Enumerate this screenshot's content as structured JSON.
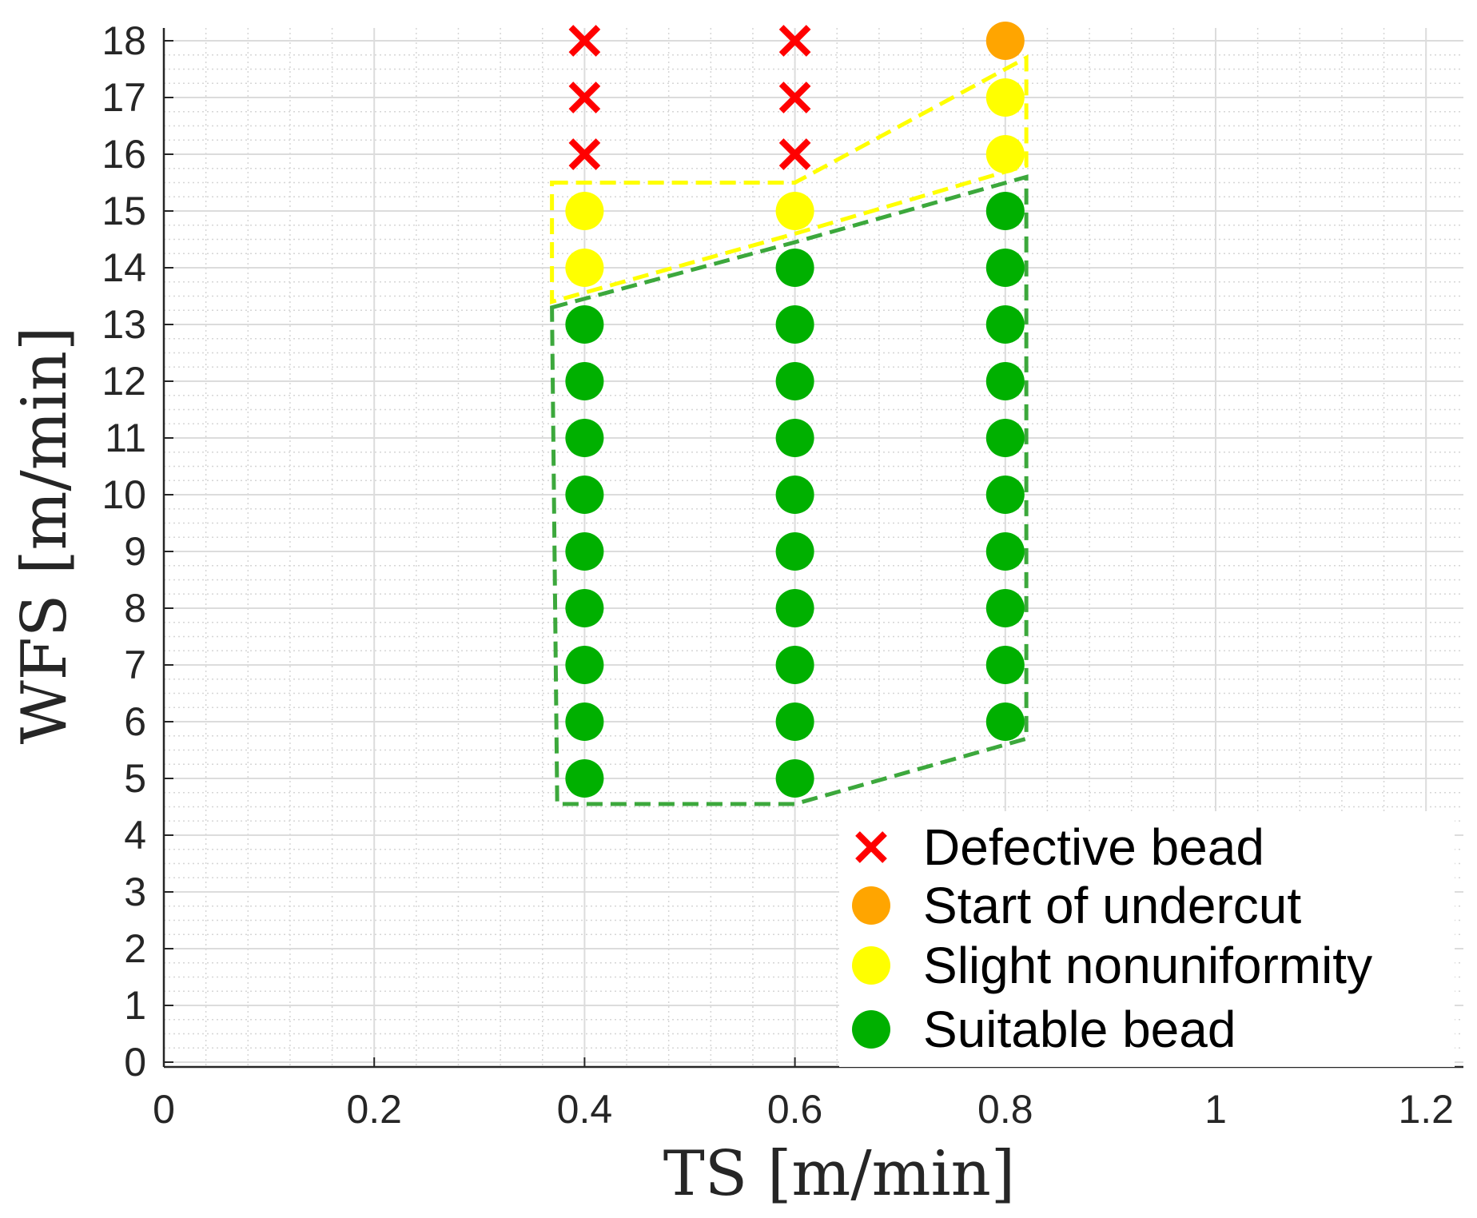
{
  "chart_data": {
    "type": "scatter",
    "title": "",
    "xlabel": "TS [m/min]",
    "ylabel": "WFS [m/min]",
    "xlim": [
      0,
      1.24
    ],
    "ylim": [
      0,
      18.5
    ],
    "xticks": [
      0,
      0.2,
      0.4,
      0.6,
      0.8,
      1,
      1.2
    ],
    "xtick_labels": [
      "0",
      "0.2",
      "0.4",
      "0.6",
      "0.8",
      "1",
      "1.2"
    ],
    "yticks": [
      0,
      1,
      2,
      3,
      4,
      5,
      6,
      7,
      8,
      9,
      10,
      11,
      12,
      13,
      14,
      15,
      16,
      17,
      18
    ],
    "ytick_labels": [
      "0",
      "1",
      "2",
      "3",
      "4",
      "5",
      "6",
      "7",
      "8",
      "9",
      "10",
      "11",
      "12",
      "13",
      "14",
      "15",
      "16",
      "17",
      "18"
    ],
    "grid": true,
    "minor_grid": true,
    "legend_position": "bottom-right",
    "series": [
      {
        "name": "Defective bead",
        "marker": "x",
        "color": "#ff0000",
        "points": [
          [
            0.4,
            16
          ],
          [
            0.4,
            17
          ],
          [
            0.4,
            18
          ],
          [
            0.6,
            16
          ],
          [
            0.6,
            17
          ],
          [
            0.6,
            18
          ]
        ]
      },
      {
        "name": "Start of undercut",
        "marker": "circle",
        "color": "#ffa500",
        "points": [
          [
            0.8,
            18
          ]
        ]
      },
      {
        "name": "Slight nonuniformity",
        "marker": "circle",
        "color": "#ffff00",
        "points": [
          [
            0.4,
            14
          ],
          [
            0.4,
            15
          ],
          [
            0.6,
            15
          ],
          [
            0.8,
            16
          ],
          [
            0.8,
            17
          ]
        ]
      },
      {
        "name": "Suitable bead",
        "marker": "circle",
        "color": "#00b000",
        "points": [
          [
            0.4,
            5
          ],
          [
            0.4,
            6
          ],
          [
            0.4,
            7
          ],
          [
            0.4,
            8
          ],
          [
            0.4,
            9
          ],
          [
            0.4,
            10
          ],
          [
            0.4,
            11
          ],
          [
            0.4,
            12
          ],
          [
            0.4,
            13
          ],
          [
            0.6,
            5
          ],
          [
            0.6,
            6
          ],
          [
            0.6,
            7
          ],
          [
            0.6,
            8
          ],
          [
            0.6,
            9
          ],
          [
            0.6,
            10
          ],
          [
            0.6,
            11
          ],
          [
            0.6,
            12
          ],
          [
            0.6,
            13
          ],
          [
            0.6,
            14
          ],
          [
            0.8,
            6
          ],
          [
            0.8,
            7
          ],
          [
            0.8,
            8
          ],
          [
            0.8,
            9
          ],
          [
            0.8,
            10
          ],
          [
            0.8,
            11
          ],
          [
            0.8,
            12
          ],
          [
            0.8,
            13
          ],
          [
            0.8,
            14
          ],
          [
            0.8,
            15
          ]
        ]
      }
    ],
    "regions": [
      {
        "name": "slight-nonuniformity-region",
        "color": "#ffff00",
        "style": "dashed",
        "vertices": [
          [
            0.369,
            15.5
          ],
          [
            0.6,
            15.5
          ],
          [
            0.82,
            17.7
          ],
          [
            0.82,
            15.8
          ],
          [
            0.6,
            14.6
          ],
          [
            0.369,
            13.4
          ]
        ]
      },
      {
        "name": "suitable-bead-region",
        "color": "#3ca83c",
        "style": "dashed",
        "vertices": [
          [
            0.369,
            13.3
          ],
          [
            0.6,
            14.45
          ],
          [
            0.82,
            15.6
          ],
          [
            0.82,
            5.7
          ],
          [
            0.6,
            4.55
          ],
          [
            0.374,
            4.55
          ]
        ]
      }
    ]
  }
}
